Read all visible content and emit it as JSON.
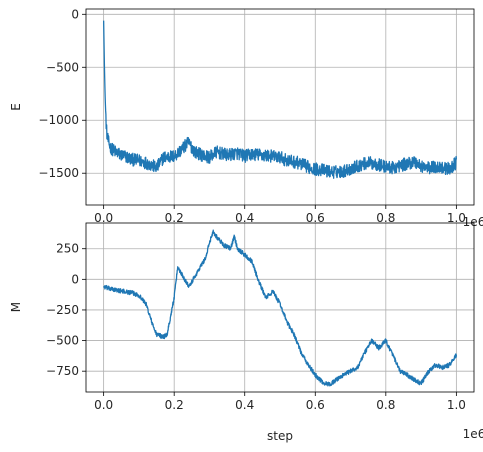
{
  "chart_data": [
    {
      "type": "line",
      "ylabel": "E",
      "xlabel": "",
      "x_offset_label": "1e6",
      "xlim": [
        -0.05,
        1.05
      ],
      "ylim": [
        -1800,
        50
      ],
      "xticks": [
        0.0,
        0.2,
        0.4,
        0.6,
        0.8,
        1.0
      ],
      "xtick_labels": [
        "0.0",
        "0.2",
        "0.4",
        "0.6",
        "0.8",
        "1.0"
      ],
      "yticks": [
        0,
        -500,
        -1000,
        -1500
      ],
      "ytick_labels": [
        "0",
        "−500",
        "−1000",
        "−1500"
      ],
      "grid": true,
      "color": "#1f77b4",
      "x": [
        0.0,
        0.002,
        0.004,
        0.006,
        0.008,
        0.01,
        0.015,
        0.02,
        0.03,
        0.04,
        0.05,
        0.06,
        0.08,
        0.1,
        0.12,
        0.14,
        0.15,
        0.17,
        0.2,
        0.22,
        0.24,
        0.26,
        0.28,
        0.3,
        0.32,
        0.35,
        0.38,
        0.4,
        0.42,
        0.45,
        0.48,
        0.5,
        0.52,
        0.55,
        0.58,
        0.6,
        0.62,
        0.65,
        0.68,
        0.7,
        0.72,
        0.75,
        0.78,
        0.8,
        0.82,
        0.85,
        0.88,
        0.9,
        0.92,
        0.95,
        0.98,
        1.0
      ],
      "y": [
        -60,
        -450,
        -750,
        -950,
        -1080,
        -1150,
        -1220,
        -1260,
        -1290,
        -1310,
        -1330,
        -1340,
        -1370,
        -1380,
        -1400,
        -1430,
        -1450,
        -1350,
        -1340,
        -1280,
        -1210,
        -1300,
        -1330,
        -1350,
        -1300,
        -1330,
        -1310,
        -1340,
        -1320,
        -1330,
        -1340,
        -1350,
        -1380,
        -1400,
        -1440,
        -1460,
        -1470,
        -1490,
        -1480,
        -1460,
        -1430,
        -1400,
        -1420,
        -1440,
        -1450,
        -1420,
        -1390,
        -1430,
        -1450,
        -1440,
        -1460,
        -1400
      ],
      "noise": 60
    },
    {
      "type": "line",
      "ylabel": "M",
      "xlabel": "step",
      "x_offset_label": "1e6",
      "xlim": [
        -0.05,
        1.05
      ],
      "ylim": [
        -920,
        460
      ],
      "xticks": [
        0.0,
        0.2,
        0.4,
        0.6,
        0.8,
        1.0
      ],
      "xtick_labels": [
        "0.0",
        "0.2",
        "0.4",
        "0.6",
        "0.8",
        "1.0"
      ],
      "yticks": [
        250,
        0,
        -250,
        -500,
        -750
      ],
      "ytick_labels": [
        "250",
        "0",
        "−250",
        "−500",
        "−750"
      ],
      "grid": true,
      "color": "#1f77b4",
      "x": [
        0.0,
        0.02,
        0.04,
        0.06,
        0.08,
        0.1,
        0.12,
        0.14,
        0.15,
        0.17,
        0.18,
        0.2,
        0.21,
        0.22,
        0.24,
        0.25,
        0.27,
        0.29,
        0.3,
        0.31,
        0.32,
        0.34,
        0.36,
        0.37,
        0.38,
        0.4,
        0.42,
        0.44,
        0.46,
        0.48,
        0.5,
        0.52,
        0.54,
        0.56,
        0.58,
        0.6,
        0.62,
        0.64,
        0.66,
        0.68,
        0.7,
        0.72,
        0.74,
        0.76,
        0.78,
        0.8,
        0.82,
        0.84,
        0.86,
        0.88,
        0.9,
        0.92,
        0.94,
        0.96,
        0.98,
        1.0
      ],
      "y": [
        -60,
        -80,
        -90,
        -100,
        -110,
        -130,
        -200,
        -380,
        -450,
        -470,
        -450,
        -150,
        100,
        50,
        -50,
        -20,
        80,
        180,
        300,
        390,
        350,
        280,
        250,
        350,
        250,
        200,
        150,
        -20,
        -150,
        -100,
        -200,
        -350,
        -450,
        -600,
        -700,
        -780,
        -840,
        -860,
        -820,
        -780,
        -750,
        -720,
        -600,
        -500,
        -560,
        -500,
        -620,
        -750,
        -780,
        -820,
        -850,
        -760,
        -700,
        -720,
        -700,
        -620
      ],
      "noise": 18
    }
  ]
}
